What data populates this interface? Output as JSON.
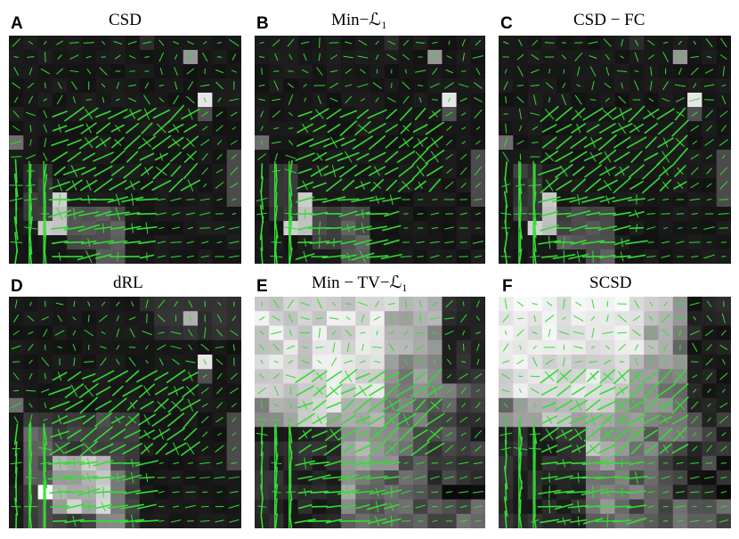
{
  "panels": [
    {
      "letter": "A",
      "title": "CSD",
      "variant": "dark"
    },
    {
      "letter": "B",
      "title": "Min−ℒ₁",
      "variant": "dark"
    },
    {
      "letter": "C",
      "title": "CSD − FC",
      "variant": "dark"
    },
    {
      "letter": "D",
      "title": "dRL",
      "variant": "dark2"
    },
    {
      "letter": "E",
      "title": "Min − TV−ℒ₁",
      "variant": "light"
    },
    {
      "letter": "F",
      "title": "SCSD",
      "variant": "light2"
    }
  ],
  "colors": {
    "background": "#ffffff",
    "glyph": "#33dd33",
    "text": "#000000"
  }
}
